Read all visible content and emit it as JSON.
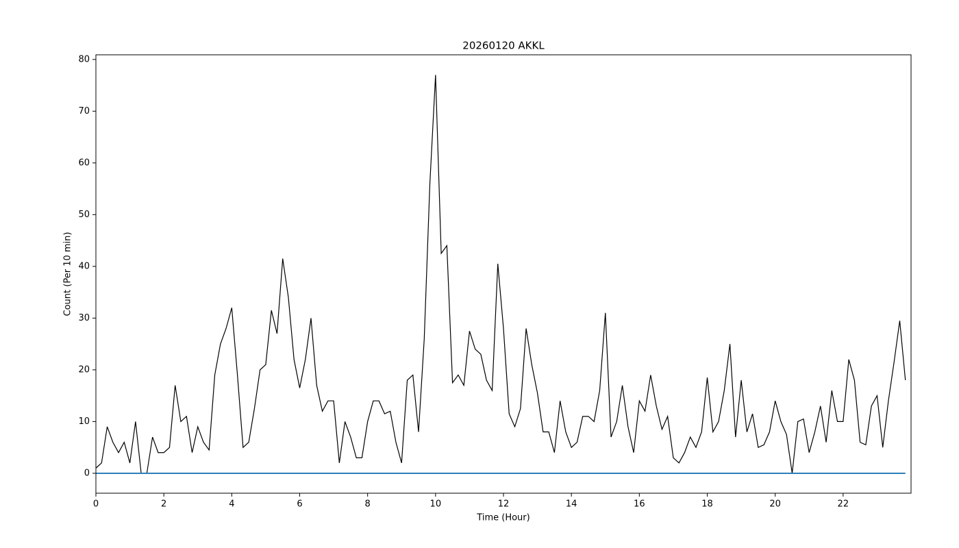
{
  "chart_data": {
    "type": "line",
    "title": "20260120 AKKL",
    "xlabel": "Time (Hour)",
    "ylabel": "Count (Per 10 min)",
    "xlim": [
      0,
      24
    ],
    "ylim": [
      -3.85,
      80.9
    ],
    "xticks": [
      0,
      2,
      4,
      6,
      8,
      10,
      12,
      14,
      16,
      18,
      20,
      22
    ],
    "yticks": [
      0,
      10,
      20,
      30,
      40,
      50,
      60,
      70,
      80
    ],
    "series": [
      {
        "color": "#000000",
        "x": [
          0,
          0.167,
          0.333,
          0.5,
          0.667,
          0.833,
          1,
          1.167,
          1.333,
          1.5,
          1.667,
          1.833,
          2,
          2.167,
          2.333,
          2.5,
          2.667,
          2.833,
          3,
          3.167,
          3.333,
          3.5,
          3.667,
          3.833,
          4,
          4.167,
          4.333,
          4.5,
          4.667,
          4.833,
          5,
          5.167,
          5.333,
          5.5,
          5.667,
          5.833,
          6,
          6.167,
          6.333,
          6.5,
          6.667,
          6.833,
          7,
          7.167,
          7.333,
          7.5,
          7.667,
          7.833,
          8,
          8.167,
          8.333,
          8.5,
          8.667,
          8.833,
          9,
          9.167,
          9.333,
          9.5,
          9.667,
          9.833,
          10,
          10.167,
          10.333,
          10.5,
          10.667,
          10.833,
          11,
          11.167,
          11.333,
          11.5,
          11.667,
          11.833,
          12,
          12.167,
          12.333,
          12.5,
          12.667,
          12.833,
          13,
          13.167,
          13.333,
          13.5,
          13.667,
          13.833,
          14,
          14.167,
          14.333,
          14.5,
          14.667,
          14.833,
          15,
          15.167,
          15.333,
          15.5,
          15.667,
          15.833,
          16,
          16.167,
          16.333,
          16.5,
          16.667,
          16.833,
          17,
          17.167,
          17.333,
          17.5,
          17.667,
          17.833,
          18,
          18.167,
          18.333,
          18.5,
          18.667,
          18.833,
          19,
          19.167,
          19.333,
          19.5,
          19.667,
          19.833,
          20,
          20.167,
          20.333,
          20.5,
          20.667,
          20.833,
          21,
          21.167,
          21.333,
          21.5,
          21.667,
          21.833,
          22,
          22.167,
          22.333,
          22.5,
          22.667,
          22.833,
          23,
          23.167,
          23.333,
          23.5,
          23.667,
          23.833
        ],
        "values": [
          1,
          2,
          9,
          6,
          4,
          6,
          2,
          10,
          0,
          0,
          7,
          4,
          4,
          5,
          17,
          10,
          11,
          4,
          9,
          6,
          4.5,
          19,
          25,
          28,
          32,
          19,
          5,
          6,
          12.5,
          20,
          21,
          31.5,
          27,
          41.5,
          34,
          22,
          16.5,
          22,
          30,
          17,
          12,
          14,
          14,
          2,
          10,
          7,
          3,
          3,
          10,
          14,
          14,
          11.5,
          12,
          6,
          2,
          18,
          19,
          8,
          26,
          56,
          77,
          42.5,
          44,
          17.5,
          19,
          17,
          27.5,
          24,
          23,
          18,
          16,
          40.5,
          28,
          11.5,
          9,
          12.5,
          28,
          21,
          15.5,
          8,
          8,
          4,
          14,
          8,
          5,
          6,
          11,
          11,
          10,
          16,
          31,
          7,
          10,
          17,
          9,
          4,
          14,
          12,
          19,
          13,
          8.5,
          11,
          3,
          2,
          4,
          7,
          5,
          8,
          18.5,
          8,
          10,
          16,
          25,
          7,
          18,
          8,
          11.5,
          5,
          5.5,
          8,
          14,
          10,
          7.5,
          0,
          10,
          10.5,
          4,
          8,
          13,
          6,
          16,
          10,
          10,
          22,
          18,
          6,
          5.5,
          13,
          15,
          5,
          14,
          21.5,
          29.5,
          18
        ]
      },
      {
        "color": "#1f77b4",
        "x": [
          0,
          23.833
        ],
        "values": [
          0,
          0
        ]
      }
    ]
  }
}
